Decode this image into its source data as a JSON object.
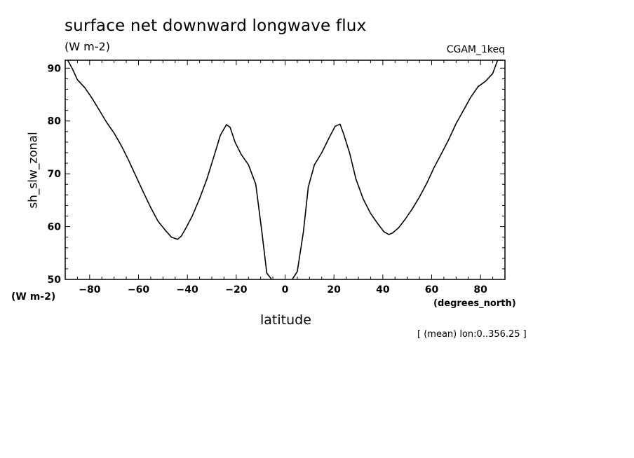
{
  "chart_data": {
    "type": "line",
    "title": "surface net downward longwave flux",
    "units": "(W m-2)",
    "dataset": "CGAM_1keq",
    "ylabel": "sh_slw_zonal",
    "yunits": "(W m-2)",
    "xlabel": "latitude",
    "xunits": "(degrees_north)",
    "footnote": "[ (mean) lon:0..356.25 ]",
    "xlim": [
      -90,
      90
    ],
    "ylim": [
      50,
      91.5
    ],
    "xticks": [
      -80,
      -60,
      -40,
      -20,
      0,
      20,
      40,
      60,
      80
    ],
    "yticks": [
      50,
      60,
      70,
      80,
      90
    ],
    "grid": false,
    "series": [
      {
        "x": [
          -89.0,
          -87.0,
          -85.0,
          -82.0,
          -79.0,
          -76.0,
          -73.0,
          -70.0,
          -67.0,
          -64.0,
          -61.0,
          -58.0,
          -55.0,
          -52.0,
          -49.0,
          -46.5,
          -44.0,
          -42.5,
          -40.5,
          -38.0,
          -35.0,
          -32.0,
          -29.0,
          -26.5,
          -24.0,
          -22.5,
          -20.5,
          -18.0,
          -15.0,
          -12.0,
          -9.5,
          -7.5,
          -5.0,
          -2.5,
          0.0,
          2.5,
          5.0,
          7.5,
          9.5,
          12.0,
          15.0,
          18.0,
          20.5,
          22.5,
          24.0,
          26.5,
          29.0,
          32.0,
          35.0,
          38.0,
          40.5,
          42.5,
          44.0,
          46.5,
          49.0,
          52.0,
          55.0,
          58.0,
          61.0,
          64.0,
          67.0,
          70.0,
          73.0,
          76.0,
          79.0,
          82.0,
          85.0,
          87.0,
          89.0
        ],
        "values": [
          91.5,
          89.8,
          87.8,
          86.3,
          84.3,
          82.0,
          79.7,
          77.7,
          75.3,
          72.5,
          69.5,
          66.5,
          63.6,
          61.0,
          59.3,
          58.0,
          57.6,
          58.2,
          59.8,
          62.0,
          65.3,
          69.0,
          73.5,
          77.3,
          79.3,
          78.8,
          76.0,
          73.7,
          71.7,
          68.0,
          59.0,
          51.2,
          49.7,
          48.5,
          48.0,
          49.7,
          51.5,
          59.0,
          67.5,
          71.7,
          74.0,
          76.8,
          79.0,
          79.4,
          77.5,
          73.8,
          69.0,
          65.2,
          62.5,
          60.5,
          59.0,
          58.5,
          58.8,
          59.8,
          61.3,
          63.3,
          65.6,
          68.2,
          71.2,
          73.8,
          76.5,
          79.5,
          82.0,
          84.5,
          86.5,
          87.5,
          89.0,
          91.5,
          91.5
        ]
      }
    ]
  }
}
